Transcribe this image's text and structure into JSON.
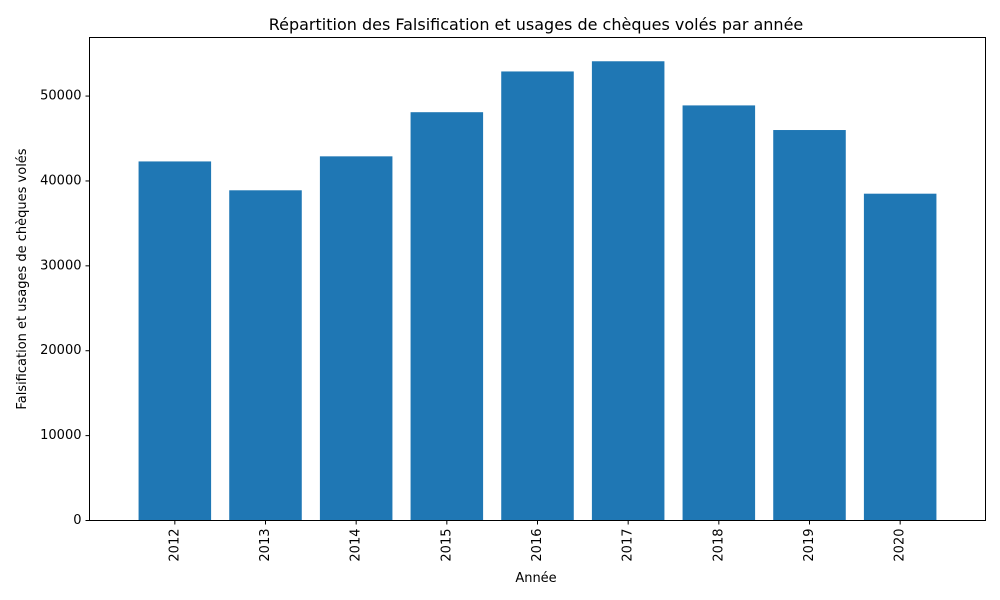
{
  "chart_data": {
    "type": "bar",
    "title": "Répartition des Falsification et usages de chèques volés par année",
    "xlabel": "Année",
    "ylabel": "Falsification et usages de chèques volés",
    "categories": [
      "2012",
      "2013",
      "2014",
      "2015",
      "2016",
      "2017",
      "2018",
      "2019",
      "2020"
    ],
    "values": [
      42300,
      38900,
      42900,
      48100,
      52900,
      54100,
      48900,
      46000,
      38500
    ],
    "ylim": [
      0,
      56900
    ],
    "yticks": [
      0,
      10000,
      20000,
      30000,
      40000,
      50000
    ],
    "grid": false,
    "bar_color": "#1f77b4",
    "x_tick_rotation": "vertical"
  }
}
